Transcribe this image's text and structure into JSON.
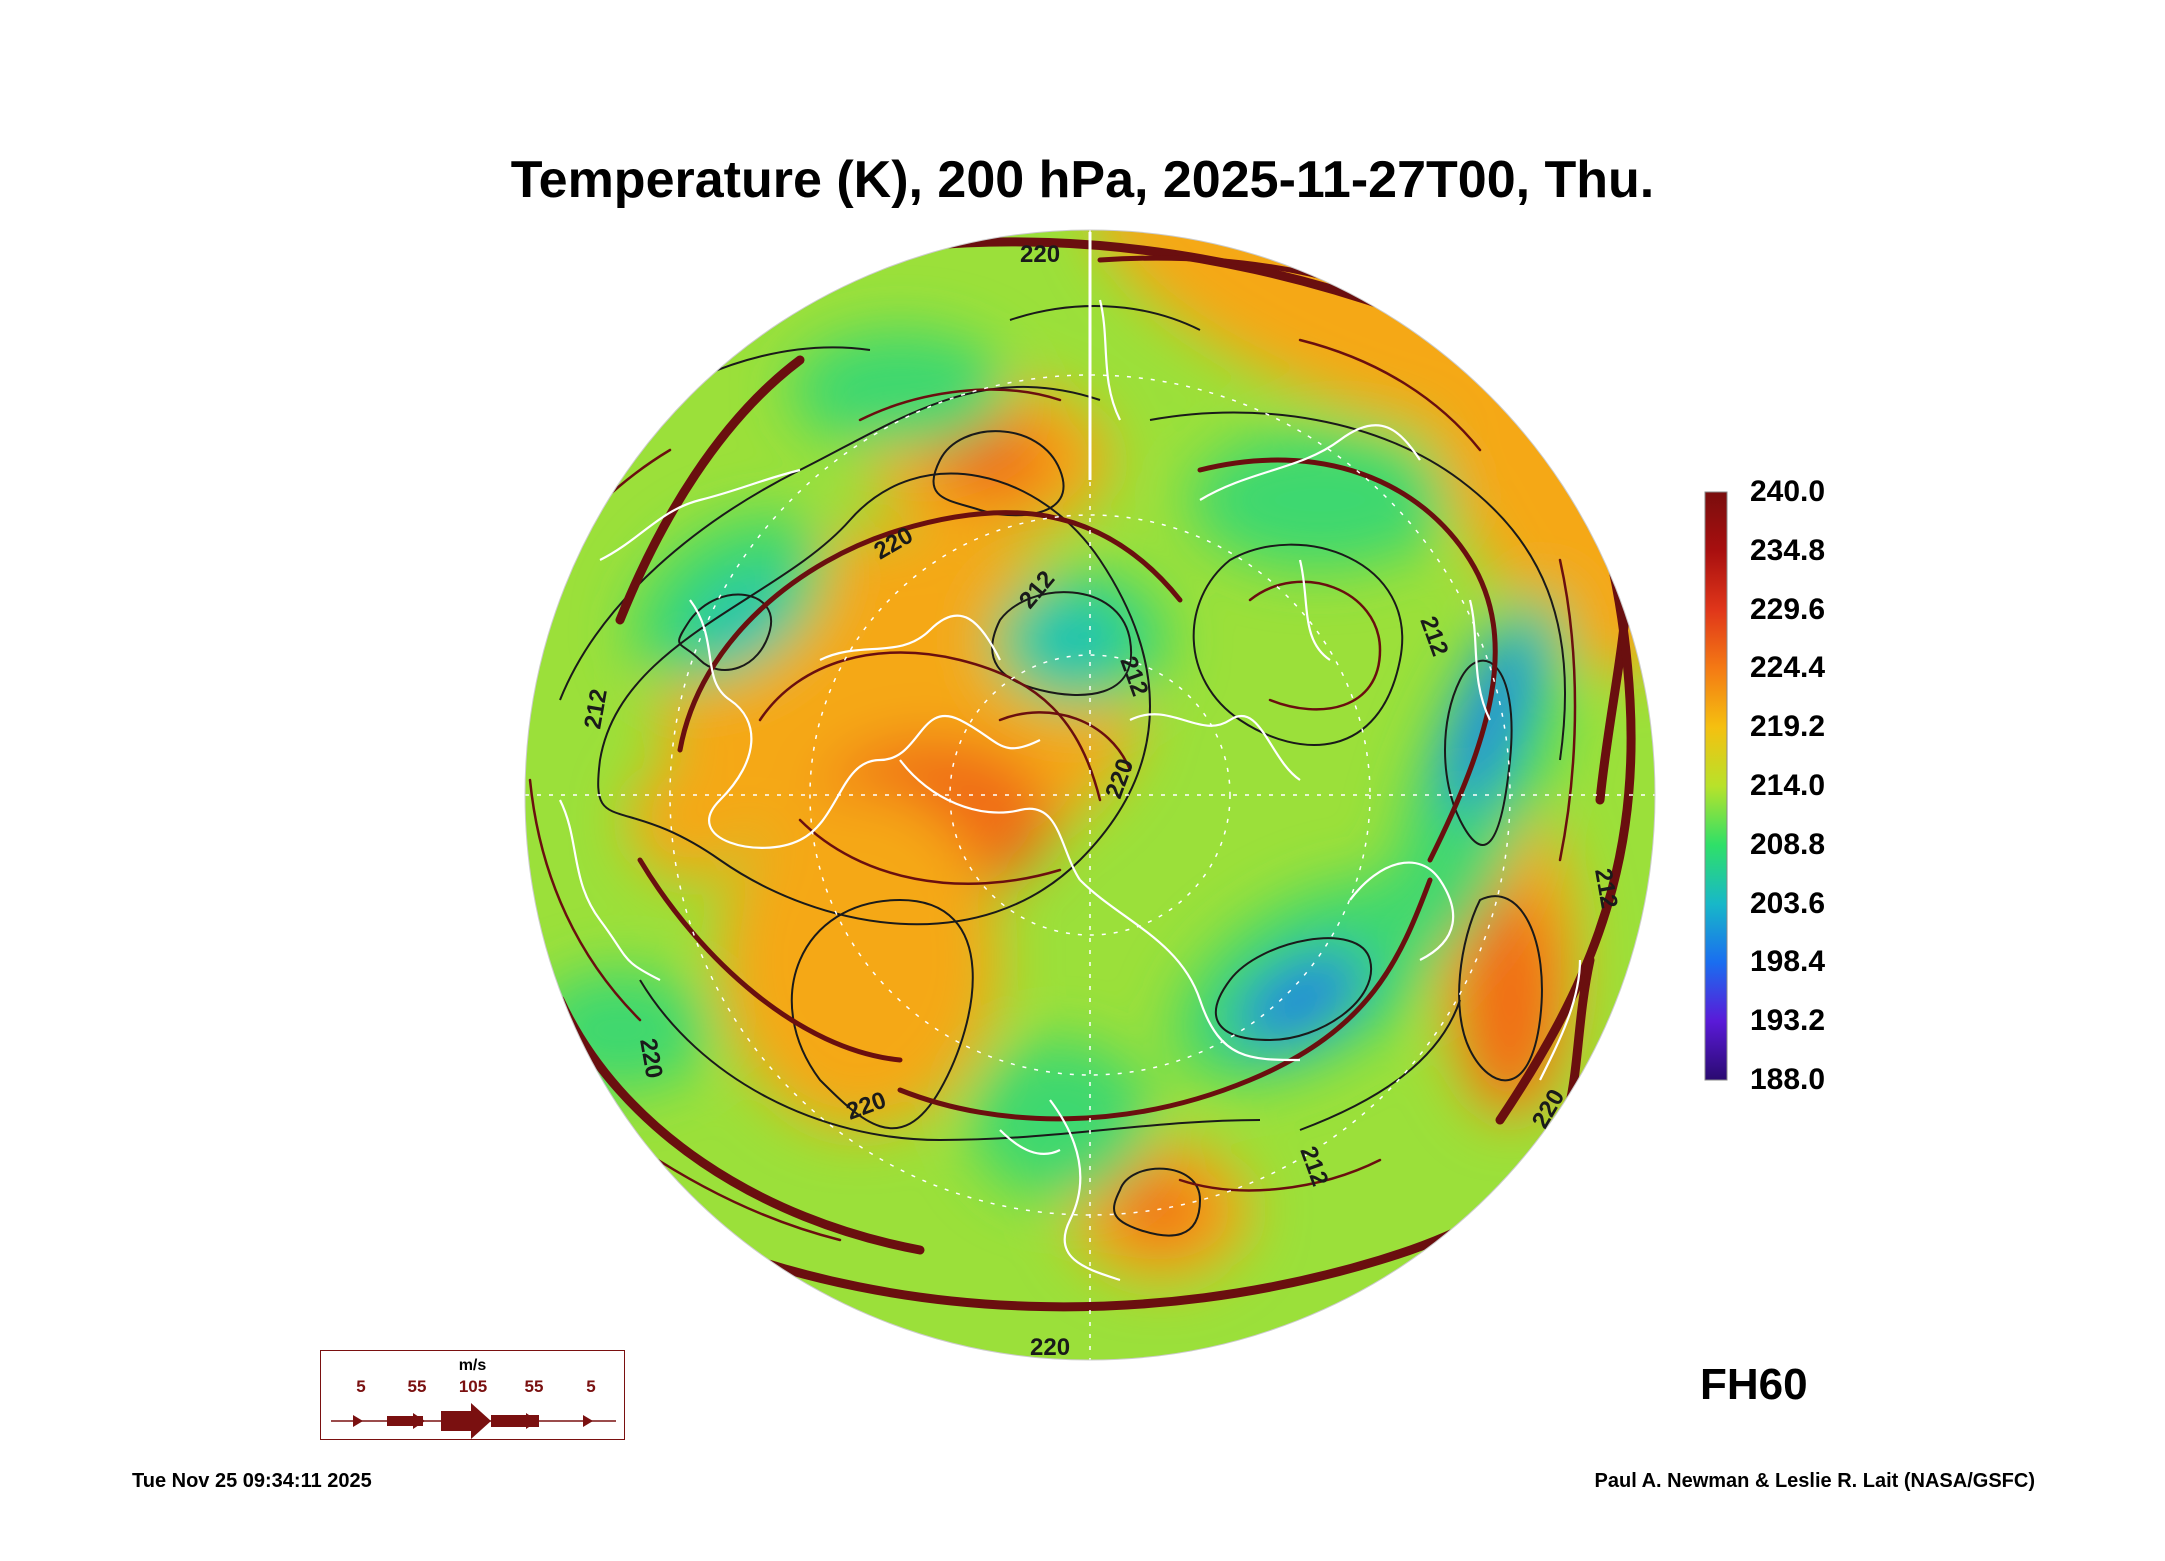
{
  "title": "Temperature (K), 200 hPa, 2025-11-27T00, Thu.",
  "colorbar": {
    "labels": [
      "240.0",
      "234.8",
      "229.6",
      "224.4",
      "219.2",
      "214.0",
      "208.8",
      "203.6",
      "198.4",
      "193.2",
      "188.0"
    ],
    "colors": [
      "#7a0d0d",
      "#a80f0f",
      "#e0361a",
      "#f47a14",
      "#f5c010",
      "#b8e22a",
      "#2fe068",
      "#18b8c8",
      "#1a6ef0",
      "#5a1ad8",
      "#2a0a70"
    ]
  },
  "contour_labels": [
    "220",
    "220",
    "212",
    "212",
    "212",
    "220",
    "212",
    "212",
    "220",
    "220",
    "212",
    "220",
    "220"
  ],
  "wind_legend": {
    "unit": "m/s",
    "ticks": [
      "5",
      "55",
      "105",
      "55",
      "5"
    ],
    "color": "#7a1010"
  },
  "forecast_hour": "FH60",
  "timestamp": "Tue Nov 25 09:34:11 2025",
  "credits": "Paul A. Newman & Leslie R. Lait (NASA/GSFC)",
  "map_colors": {
    "base": "#9be03a",
    "warm": "#f5a818",
    "hot": "#f06a14",
    "cool": "#3cd870",
    "cold": "#18c0b8",
    "coldest": "#1a7ee0",
    "streamline": "#6a0f0f",
    "contour": "#1a1a1a",
    "coast": "#ffffff"
  }
}
